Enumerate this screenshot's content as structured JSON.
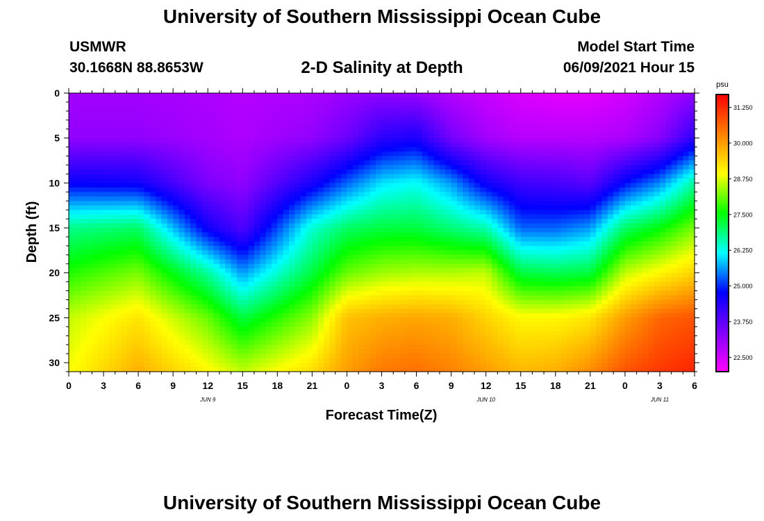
{
  "header": {
    "title": "University of Southern Mississippi Ocean Cube",
    "station": "USMWR",
    "coordinates": "30.1668N  88.8653W",
    "subtitle": "2-D Salinity at Depth",
    "model_start_label": "Model Start Time",
    "model_start_value": "06/09/2021 Hour 15"
  },
  "footer": {
    "title": "University of Southern Mississippi Ocean Cube"
  },
  "chart_data": {
    "type": "heatmap",
    "title": "2-D Salinity at Depth",
    "xlabel": "Forecast Time(Z)",
    "ylabel": "Depth (ft)",
    "x_range": [
      0,
      54
    ],
    "y_range": [
      0,
      31
    ],
    "y_inverted": true,
    "x_ticks": [
      {
        "value": 0,
        "label": "0"
      },
      {
        "value": 3,
        "label": "3"
      },
      {
        "value": 6,
        "label": "6"
      },
      {
        "value": 9,
        "label": "9"
      },
      {
        "value": 12,
        "label": "12"
      },
      {
        "value": 15,
        "label": "15"
      },
      {
        "value": 18,
        "label": "18"
      },
      {
        "value": 21,
        "label": "21"
      },
      {
        "value": 24,
        "label": "0"
      },
      {
        "value": 27,
        "label": "3"
      },
      {
        "value": 30,
        "label": "6"
      },
      {
        "value": 33,
        "label": "9"
      },
      {
        "value": 36,
        "label": "12"
      },
      {
        "value": 39,
        "label": "15"
      },
      {
        "value": 42,
        "label": "18"
      },
      {
        "value": 45,
        "label": "21"
      },
      {
        "value": 48,
        "label": "0"
      },
      {
        "value": 51,
        "label": "3"
      },
      {
        "value": 54,
        "label": "6"
      }
    ],
    "date_labels": [
      {
        "value": 12,
        "label": "JUN 9"
      },
      {
        "value": 36,
        "label": "JUN 10"
      },
      {
        "value": 51,
        "label": "JUN 11"
      }
    ],
    "y_ticks": [
      0,
      5,
      10,
      15,
      20,
      25,
      30
    ],
    "colorbar": {
      "unit": "psu",
      "min": 22.0,
      "max": 31.7,
      "ticks": [
        "22.500",
        "23.750",
        "25.000",
        "26.250",
        "27.500",
        "28.750",
        "30.000",
        "31.250"
      ],
      "colors": [
        "#ff00ff",
        "#8000ff",
        "#0000ff",
        "#00ffff",
        "#00ff00",
        "#ffff00",
        "#ff8000",
        "#ff0000"
      ]
    },
    "salinity_profiles": {
      "depths": [
        0,
        5,
        10,
        15,
        20,
        25,
        31
      ],
      "times": [
        0,
        6,
        12,
        15,
        21,
        24,
        27,
        30,
        33,
        36,
        39,
        42,
        45,
        48,
        51,
        54
      ],
      "values": [
        [
          23.0,
          23.2,
          24.7,
          26.8,
          27.7,
          28.6,
          28.9
        ],
        [
          23.0,
          23.2,
          24.6,
          27.0,
          28.2,
          29.2,
          29.8
        ],
        [
          22.9,
          23.0,
          23.4,
          24.6,
          26.7,
          28.1,
          29.0
        ],
        [
          22.8,
          22.9,
          23.2,
          23.9,
          25.6,
          27.2,
          28.6
        ],
        [
          22.9,
          23.2,
          24.5,
          26.4,
          27.2,
          28.3,
          29.3
        ],
        [
          23.1,
          23.6,
          25.3,
          27.0,
          28.1,
          29.6,
          30.0
        ],
        [
          23.2,
          24.3,
          26.0,
          27.2,
          28.4,
          29.8,
          30.4
        ],
        [
          23.1,
          24.5,
          26.2,
          27.2,
          28.5,
          29.9,
          30.5
        ],
        [
          22.8,
          23.5,
          25.6,
          26.9,
          28.5,
          29.8,
          30.3
        ],
        [
          22.6,
          23.0,
          24.6,
          26.6,
          28.6,
          29.4,
          30.0
        ],
        [
          22.4,
          22.8,
          24.1,
          25.3,
          27.2,
          29.0,
          29.7
        ],
        [
          22.3,
          22.8,
          24.0,
          25.3,
          27.1,
          29.0,
          29.8
        ],
        [
          22.3,
          22.8,
          23.8,
          25.6,
          27.2,
          29.2,
          30.2
        ],
        [
          22.5,
          22.9,
          24.8,
          27.0,
          28.6,
          30.0,
          30.8
        ],
        [
          22.8,
          23.3,
          25.5,
          27.5,
          29.0,
          30.6,
          31.1
        ],
        [
          23.2,
          24.3,
          26.7,
          28.2,
          29.4,
          30.8,
          31.3
        ]
      ]
    }
  }
}
